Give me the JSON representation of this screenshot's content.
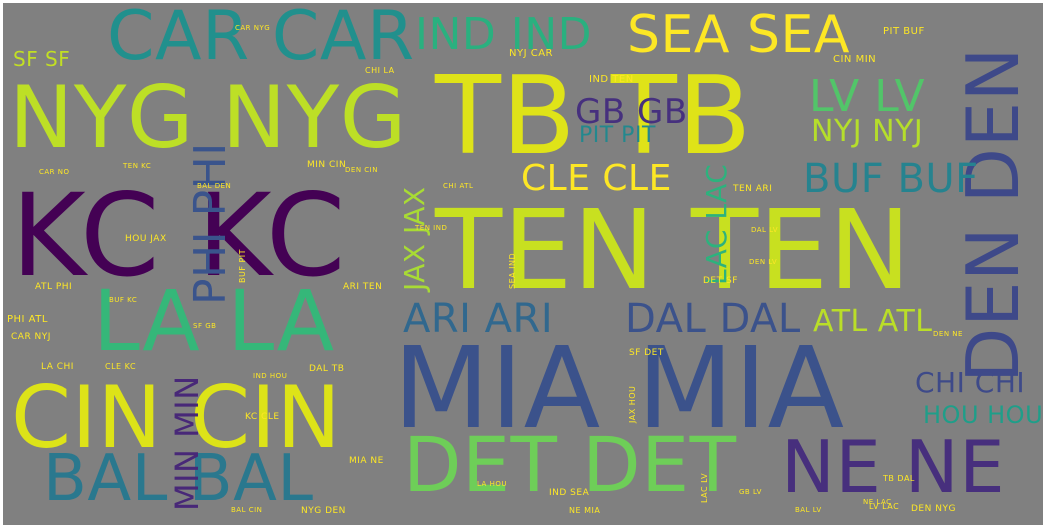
{
  "wordcloud": {
    "words": [
      {
        "text": "TB TB",
        "color": "#dfe318"
      },
      {
        "text": "TEN TEN",
        "color": "#c8e020"
      },
      {
        "text": "KC KC",
        "color": "#440154"
      },
      {
        "text": "MIA MIA",
        "color": "#3b528b"
      },
      {
        "text": "NYG NYG",
        "color": "#bddf26"
      },
      {
        "text": "DEN DEN",
        "color": "#3e4989"
      },
      {
        "text": "CIN CIN",
        "color": "#dde318"
      },
      {
        "text": "LA LA",
        "color": "#35b779"
      },
      {
        "text": "CAR CAR",
        "color": "#21908d"
      },
      {
        "text": "DET DET",
        "color": "#6ece58"
      },
      {
        "text": "NE NE",
        "color": "#472f7d"
      },
      {
        "text": "BAL BAL",
        "color": "#2a788e"
      },
      {
        "text": "SEA SEA",
        "color": "#fde725"
      },
      {
        "text": "IND IND",
        "color": "#2ab07f"
      },
      {
        "text": "PHI PHI",
        "color": "#3a548c"
      },
      {
        "text": "ARI ARI",
        "color": "#31688e"
      },
      {
        "text": "DAL DAL",
        "color": "#3b528b"
      },
      {
        "text": "MIN MIN",
        "color": "#482878"
      },
      {
        "text": "LV LV",
        "color": "#52c569"
      },
      {
        "text": "BUF BUF",
        "color": "#26838f"
      },
      {
        "text": "JAX JAX",
        "color": "#a8db34"
      },
      {
        "text": "LAC LAC",
        "color": "#2db27d"
      },
      {
        "text": "GB GB",
        "color": "#46307e"
      },
      {
        "text": "CLE CLE",
        "color": "#fde725"
      },
      {
        "text": "NYJ NYJ",
        "color": "#b5de2b"
      },
      {
        "text": "ATL ATL",
        "color": "#bade28"
      },
      {
        "text": "CHI CHI",
        "color": "#3e4a89"
      },
      {
        "text": "HOU HOU",
        "color": "#1f9e89"
      },
      {
        "text": "PIT PIT",
        "color": "#23888e"
      },
      {
        "text": "SF SF",
        "color": "#c2df23"
      },
      {
        "text": "NYJ CAR",
        "color": "#fde725"
      },
      {
        "text": "IND TEN",
        "color": "#fde725"
      },
      {
        "text": "PIT BUF",
        "color": "#fde725"
      },
      {
        "text": "CIN MIN",
        "color": "#fde725"
      },
      {
        "text": "TEN ARI",
        "color": "#fde725"
      },
      {
        "text": "HOU JAX",
        "color": "#fde725"
      },
      {
        "text": "ATL PHI",
        "color": "#fde725"
      },
      {
        "text": "PHI ATL",
        "color": "#fde725"
      },
      {
        "text": "CAR NYJ",
        "color": "#fde725"
      },
      {
        "text": "LA CHI",
        "color": "#fde725"
      },
      {
        "text": "CLE KC",
        "color": "#fde725"
      },
      {
        "text": "MIN CIN",
        "color": "#fde725"
      },
      {
        "text": "ARI TEN",
        "color": "#fde725"
      },
      {
        "text": "DAL TB",
        "color": "#fde725"
      },
      {
        "text": "KC CLE",
        "color": "#fde725"
      },
      {
        "text": "MIA NE",
        "color": "#fde725"
      },
      {
        "text": "DET SF",
        "color": "#fde725"
      },
      {
        "text": "SF DET",
        "color": "#fde725"
      },
      {
        "text": "JAX HOU",
        "color": "#fde725"
      },
      {
        "text": "IND SEA",
        "color": "#fde725"
      },
      {
        "text": "NE MIA",
        "color": "#fde725"
      },
      {
        "text": "NYG DEN",
        "color": "#fde725"
      },
      {
        "text": "DEN NYG",
        "color": "#fde725"
      },
      {
        "text": "BUF PIT",
        "color": "#fde725"
      },
      {
        "text": "CHI LA",
        "color": "#fde725"
      },
      {
        "text": "LV LAC",
        "color": "#fde725"
      },
      {
        "text": "LAC LV",
        "color": "#fde725"
      },
      {
        "text": "TB DAL",
        "color": "#fde725"
      },
      {
        "text": "NE LAC",
        "color": "#fde725"
      },
      {
        "text": "SEA IND",
        "color": "#fde725"
      },
      {
        "text": "TEN IND",
        "color": "#fde725"
      },
      {
        "text": "DAL LV",
        "color": "#fde725"
      },
      {
        "text": "LA HOU",
        "color": "#fde725"
      },
      {
        "text": "DEN NE",
        "color": "#fde725"
      },
      {
        "text": "CAR NYG",
        "color": "#fde725"
      },
      {
        "text": "IND HOU",
        "color": "#fde725"
      },
      {
        "text": "CAR NO",
        "color": "#fde725"
      },
      {
        "text": "GB LV",
        "color": "#fde725"
      },
      {
        "text": "BUF KC",
        "color": "#fde725"
      },
      {
        "text": "DEN CIN",
        "color": "#fde725"
      },
      {
        "text": "BAL CIN",
        "color": "#fde725"
      },
      {
        "text": "SF GB",
        "color": "#fde725"
      },
      {
        "text": "CHI ATL",
        "color": "#fde725"
      },
      {
        "text": "DEN LV",
        "color": "#fde725"
      },
      {
        "text": "BAL LV",
        "color": "#fde725"
      },
      {
        "text": "TEN KC",
        "color": "#fde725"
      },
      {
        "text": "BAL DEN",
        "color": "#fde725"
      }
    ]
  }
}
